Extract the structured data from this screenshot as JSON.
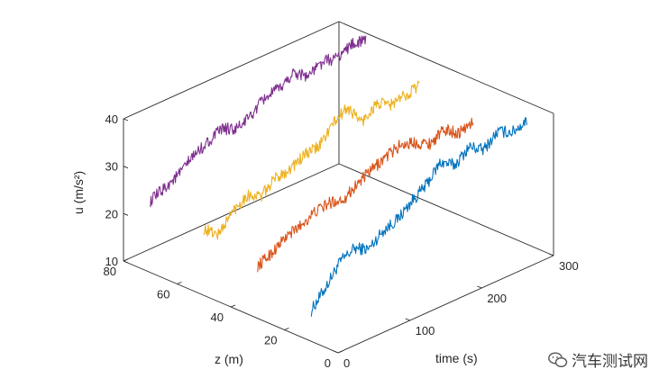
{
  "chart_data": {
    "type": "line",
    "subtype": "3d-waterfall",
    "xlabel": "time (s)",
    "ylabel": "z (m)",
    "zlabel": "u (m/s²)",
    "xlim": [
      0,
      300
    ],
    "ylim": [
      0,
      80
    ],
    "zlim": [
      10,
      40
    ],
    "x_ticks": [
      "0",
      "100",
      "200",
      "300"
    ],
    "y_ticks": [
      "0",
      "20",
      "40",
      "60",
      "80"
    ],
    "z_ticks": [
      "10",
      "20",
      "30",
      "40"
    ],
    "grid": false,
    "series": [
      {
        "z_position": 10,
        "color": "#0072BD",
        "x": [
          0,
          20,
          40,
          60,
          80,
          100,
          120,
          140,
          160,
          180,
          200,
          220,
          240,
          260,
          280,
          300
        ],
        "y": [
          16.5,
          20,
          24,
          25.5,
          24,
          26.5,
          27.5,
          30,
          32,
          35.5,
          33.5,
          36,
          34,
          36.5,
          35,
          36
        ]
      },
      {
        "z_position": 30,
        "color": "#D95319",
        "x": [
          0,
          20,
          40,
          60,
          80,
          100,
          120,
          140,
          160,
          180,
          200,
          220,
          240,
          260,
          280,
          300
        ],
        "y": [
          21,
          22.5,
          24.5,
          25.5,
          27,
          27.5,
          27,
          29,
          30.5,
          32,
          33,
          32,
          30.5,
          32,
          30,
          31
        ]
      },
      {
        "z_position": 50,
        "color": "#EDB120",
        "x": [
          0,
          20,
          40,
          60,
          80,
          100,
          120,
          140,
          160,
          180,
          200,
          220,
          240,
          260,
          280,
          300
        ],
        "y": [
          24,
          21.5,
          25,
          27,
          25.5,
          28,
          28.5,
          30,
          30.5,
          34,
          36,
          31.5,
          34,
          32.5,
          33,
          34
        ]
      },
      {
        "z_position": 70,
        "color": "#7E2F8E",
        "x": [
          0,
          20,
          40,
          60,
          80,
          100,
          120,
          140,
          160,
          180,
          200,
          220,
          240,
          260,
          280,
          300
        ],
        "y": [
          25,
          26.5,
          28,
          30.5,
          32,
          33.5,
          32,
          33.5,
          36,
          36.5,
          38.5,
          36.5,
          38,
          37.5,
          39,
          38.5
        ]
      }
    ]
  },
  "watermark": {
    "text": "汽车测试网",
    "icon": "wechat-logo-icon"
  }
}
